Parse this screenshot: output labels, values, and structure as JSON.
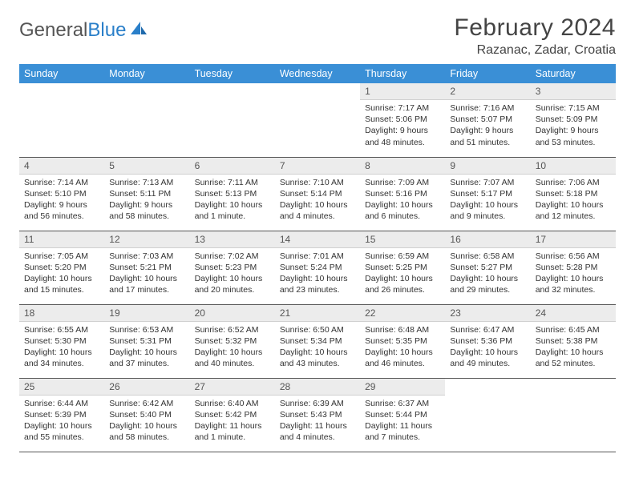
{
  "brand": {
    "part1": "General",
    "part2": "Blue"
  },
  "title": "February 2024",
  "location": "Razanac, Zadar, Croatia",
  "colors": {
    "header_bg": "#3a8fd6",
    "header_fg": "#ffffff",
    "daynum_bg": "#ececec",
    "rule": "#555555",
    "brand_blue": "#2a7fc9",
    "text": "#333333"
  },
  "weekdays": [
    "Sunday",
    "Monday",
    "Tuesday",
    "Wednesday",
    "Thursday",
    "Friday",
    "Saturday"
  ],
  "weeks": [
    [
      null,
      null,
      null,
      null,
      {
        "n": "1",
        "sr": "7:17 AM",
        "ss": "5:06 PM",
        "dl": "9 hours and 48 minutes."
      },
      {
        "n": "2",
        "sr": "7:16 AM",
        "ss": "5:07 PM",
        "dl": "9 hours and 51 minutes."
      },
      {
        "n": "3",
        "sr": "7:15 AM",
        "ss": "5:09 PM",
        "dl": "9 hours and 53 minutes."
      }
    ],
    [
      {
        "n": "4",
        "sr": "7:14 AM",
        "ss": "5:10 PM",
        "dl": "9 hours and 56 minutes."
      },
      {
        "n": "5",
        "sr": "7:13 AM",
        "ss": "5:11 PM",
        "dl": "9 hours and 58 minutes."
      },
      {
        "n": "6",
        "sr": "7:11 AM",
        "ss": "5:13 PM",
        "dl": "10 hours and 1 minute."
      },
      {
        "n": "7",
        "sr": "7:10 AM",
        "ss": "5:14 PM",
        "dl": "10 hours and 4 minutes."
      },
      {
        "n": "8",
        "sr": "7:09 AM",
        "ss": "5:16 PM",
        "dl": "10 hours and 6 minutes."
      },
      {
        "n": "9",
        "sr": "7:07 AM",
        "ss": "5:17 PM",
        "dl": "10 hours and 9 minutes."
      },
      {
        "n": "10",
        "sr": "7:06 AM",
        "ss": "5:18 PM",
        "dl": "10 hours and 12 minutes."
      }
    ],
    [
      {
        "n": "11",
        "sr": "7:05 AM",
        "ss": "5:20 PM",
        "dl": "10 hours and 15 minutes."
      },
      {
        "n": "12",
        "sr": "7:03 AM",
        "ss": "5:21 PM",
        "dl": "10 hours and 17 minutes."
      },
      {
        "n": "13",
        "sr": "7:02 AM",
        "ss": "5:23 PM",
        "dl": "10 hours and 20 minutes."
      },
      {
        "n": "14",
        "sr": "7:01 AM",
        "ss": "5:24 PM",
        "dl": "10 hours and 23 minutes."
      },
      {
        "n": "15",
        "sr": "6:59 AM",
        "ss": "5:25 PM",
        "dl": "10 hours and 26 minutes."
      },
      {
        "n": "16",
        "sr": "6:58 AM",
        "ss": "5:27 PM",
        "dl": "10 hours and 29 minutes."
      },
      {
        "n": "17",
        "sr": "6:56 AM",
        "ss": "5:28 PM",
        "dl": "10 hours and 32 minutes."
      }
    ],
    [
      {
        "n": "18",
        "sr": "6:55 AM",
        "ss": "5:30 PM",
        "dl": "10 hours and 34 minutes."
      },
      {
        "n": "19",
        "sr": "6:53 AM",
        "ss": "5:31 PM",
        "dl": "10 hours and 37 minutes."
      },
      {
        "n": "20",
        "sr": "6:52 AM",
        "ss": "5:32 PM",
        "dl": "10 hours and 40 minutes."
      },
      {
        "n": "21",
        "sr": "6:50 AM",
        "ss": "5:34 PM",
        "dl": "10 hours and 43 minutes."
      },
      {
        "n": "22",
        "sr": "6:48 AM",
        "ss": "5:35 PM",
        "dl": "10 hours and 46 minutes."
      },
      {
        "n": "23",
        "sr": "6:47 AM",
        "ss": "5:36 PM",
        "dl": "10 hours and 49 minutes."
      },
      {
        "n": "24",
        "sr": "6:45 AM",
        "ss": "5:38 PM",
        "dl": "10 hours and 52 minutes."
      }
    ],
    [
      {
        "n": "25",
        "sr": "6:44 AM",
        "ss": "5:39 PM",
        "dl": "10 hours and 55 minutes."
      },
      {
        "n": "26",
        "sr": "6:42 AM",
        "ss": "5:40 PM",
        "dl": "10 hours and 58 minutes."
      },
      {
        "n": "27",
        "sr": "6:40 AM",
        "ss": "5:42 PM",
        "dl": "11 hours and 1 minute."
      },
      {
        "n": "28",
        "sr": "6:39 AM",
        "ss": "5:43 PM",
        "dl": "11 hours and 4 minutes."
      },
      {
        "n": "29",
        "sr": "6:37 AM",
        "ss": "5:44 PM",
        "dl": "11 hours and 7 minutes."
      },
      null,
      null
    ]
  ],
  "labels": {
    "sunrise": "Sunrise:",
    "sunset": "Sunset:",
    "daylight": "Daylight:"
  }
}
